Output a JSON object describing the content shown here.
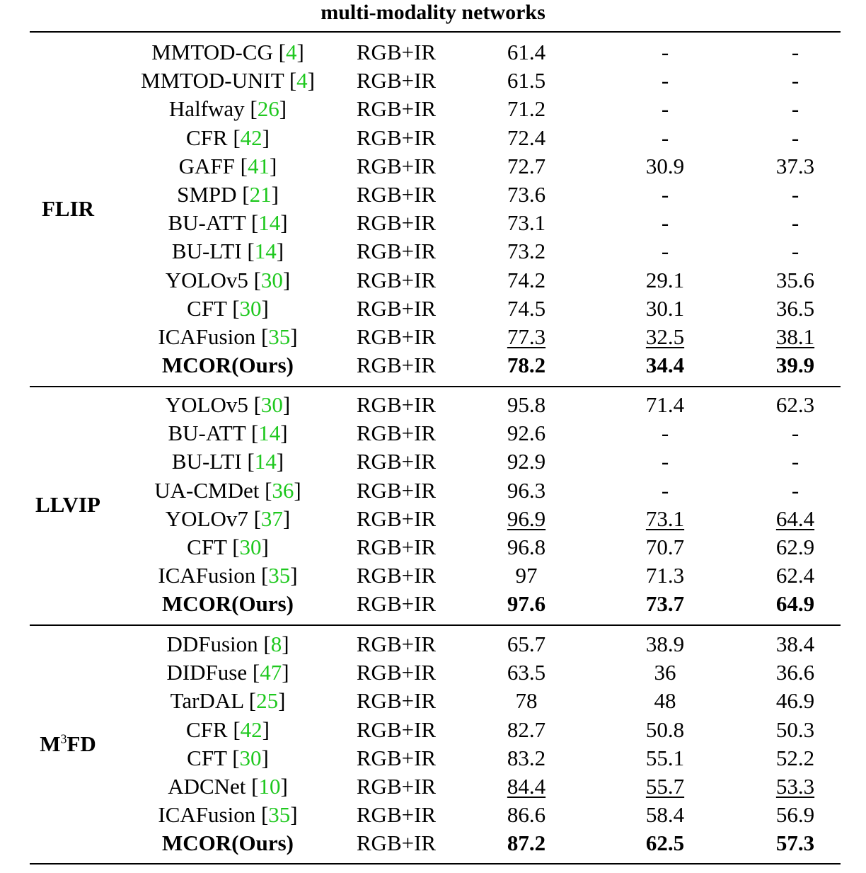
{
  "caption": "multi-modality networks",
  "sections": [
    {
      "dataset": "FLIR",
      "rows": [
        {
          "name": "MMTOD-CG",
          "ref": "4",
          "modality": "RGB+IR",
          "v1": "61.4",
          "v2": "-",
          "v3": "-"
        },
        {
          "name": "MMTOD-UNIT",
          "ref": "4",
          "modality": "RGB+IR",
          "v1": "61.5",
          "v2": "-",
          "v3": "-"
        },
        {
          "name": "Halfway",
          "ref": "26",
          "modality": "RGB+IR",
          "v1": "71.2",
          "v2": "-",
          "v3": "-"
        },
        {
          "name": "CFR",
          "ref": "42",
          "modality": "RGB+IR",
          "v1": "72.4",
          "v2": "-",
          "v3": "-"
        },
        {
          "name": "GAFF",
          "ref": "41",
          "modality": "RGB+IR",
          "v1": "72.7",
          "v2": "30.9",
          "v3": "37.3"
        },
        {
          "name": "SMPD",
          "ref": "21",
          "modality": "RGB+IR",
          "v1": "73.6",
          "v2": "-",
          "v3": "-"
        },
        {
          "name": "BU-ATT",
          "ref": "14",
          "modality": "RGB+IR",
          "v1": "73.1",
          "v2": "-",
          "v3": "-"
        },
        {
          "name": "BU-LTI",
          "ref": "14",
          "modality": "RGB+IR",
          "v1": "73.2",
          "v2": "-",
          "v3": "-"
        },
        {
          "name": "YOLOv5",
          "ref": "30",
          "modality": "RGB+IR",
          "v1": "74.2",
          "v2": "29.1",
          "v3": "35.6"
        },
        {
          "name": "CFT",
          "ref": "30",
          "modality": "RGB+IR",
          "v1": "74.5",
          "v2": "30.1",
          "v3": "36.5"
        },
        {
          "name": "ICAFusion",
          "ref": "35",
          "modality": "RGB+IR",
          "v1": "77.3",
          "v2": "32.5",
          "v3": "38.1",
          "underline": true
        },
        {
          "name": "MCOR(Ours)",
          "ref": "",
          "modality": "RGB+IR",
          "v1": "78.2",
          "v2": "34.4",
          "v3": "39.9",
          "bold": true
        }
      ]
    },
    {
      "dataset": "LLVIP",
      "rows": [
        {
          "name": "YOLOv5",
          "ref": "30",
          "modality": "RGB+IR",
          "v1": "95.8",
          "v2": "71.4",
          "v3": "62.3"
        },
        {
          "name": "BU-ATT",
          "ref": "14",
          "modality": "RGB+IR",
          "v1": "92.6",
          "v2": "-",
          "v3": "-"
        },
        {
          "name": "BU-LTI",
          "ref": "14",
          "modality": "RGB+IR",
          "v1": "92.9",
          "v2": "-",
          "v3": "-"
        },
        {
          "name": "UA-CMDet",
          "ref": "36",
          "modality": "RGB+IR",
          "v1": "96.3",
          "v2": "-",
          "v3": "-"
        },
        {
          "name": "YOLOv7",
          "ref": "37",
          "modality": "RGB+IR",
          "v1": "96.9",
          "v2": "73.1",
          "v3": "64.4",
          "underline": true
        },
        {
          "name": "CFT",
          "ref": "30",
          "modality": "RGB+IR",
          "v1": "96.8",
          "v2": "70.7",
          "v3": "62.9"
        },
        {
          "name": "ICAFusion",
          "ref": "35",
          "modality": "RGB+IR",
          "v1": "97",
          "v2": "71.3",
          "v3": "62.4"
        },
        {
          "name": "MCOR(Ours)",
          "ref": "",
          "modality": "RGB+IR",
          "v1": "97.6",
          "v2": "73.7",
          "v3": "64.9",
          "bold": true
        }
      ]
    },
    {
      "dataset": "M",
      "dataset_sup": "3",
      "dataset_tail": "FD",
      "rows": [
        {
          "name": "DDFusion",
          "ref": "8",
          "modality": "RGB+IR",
          "v1": "65.7",
          "v2": "38.9",
          "v3": "38.4"
        },
        {
          "name": "DIDFuse",
          "ref": "47",
          "modality": "RGB+IR",
          "v1": "63.5",
          "v2": "36",
          "v3": "36.6"
        },
        {
          "name": "TarDAL",
          "ref": "25",
          "modality": "RGB+IR",
          "v1": "78",
          "v2": "48",
          "v3": "46.9"
        },
        {
          "name": "CFR",
          "ref": "42",
          "modality": "RGB+IR",
          "v1": "82.7",
          "v2": "50.8",
          "v3": "50.3"
        },
        {
          "name": "CFT",
          "ref": "30",
          "modality": "RGB+IR",
          "v1": "83.2",
          "v2": "55.1",
          "v3": "52.2"
        },
        {
          "name": "ADCNet",
          "ref": "10",
          "modality": "RGB+IR",
          "v1": "84.4",
          "v2": "55.7",
          "v3": "53.3",
          "underline": true
        },
        {
          "name": "ICAFusion",
          "ref": "35",
          "modality": "RGB+IR",
          "v1": "86.6",
          "v2": "58.4",
          "v3": "56.9"
        },
        {
          "name": "MCOR(Ours)",
          "ref": "",
          "modality": "RGB+IR",
          "v1": "87.2",
          "v2": "62.5",
          "v3": "57.3",
          "bold": true
        }
      ]
    }
  ]
}
